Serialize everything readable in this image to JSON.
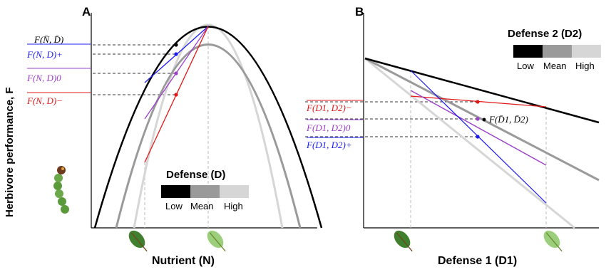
{
  "panel_a": {
    "letter": "A",
    "y_axis_label": "Herbivore performance, F",
    "x_axis_label": "Nutrient (N)",
    "legend_title": "Defense (D)",
    "legend_levels": [
      "Low",
      "Mean",
      "High"
    ],
    "annotations": {
      "mean_point": "F(N̄, D̄)",
      "plus": "F(N, D)+",
      "zero": "F(N, D)0",
      "minus": "F(N, D)−"
    }
  },
  "panel_b": {
    "letter": "B",
    "x_axis_label": "Defense 1 (D1)",
    "legend_title": "Defense 2 (D2)",
    "legend_levels": [
      "Low",
      "Mean",
      "High"
    ],
    "annotations": {
      "minus": "F(D1, D2)−",
      "mean_point": "F(D̄1, D̄2)",
      "zero": "F(D1, D2)0",
      "plus": "F(D1, D2)+"
    }
  },
  "colors": {
    "low": "#000000",
    "mean": "#9a9a9a",
    "high": "#d6d6d6",
    "plus": "#1c1cf0",
    "zero": "#9b3fc7",
    "minus": "#e01818",
    "leaf_dark": "#3f7f2e",
    "leaf_light": "#9ccf7c",
    "caterpillar": "#5a9a3a"
  },
  "icons": [
    "caterpillar-icon",
    "dark-leaf-icon",
    "light-leaf-icon"
  ]
}
